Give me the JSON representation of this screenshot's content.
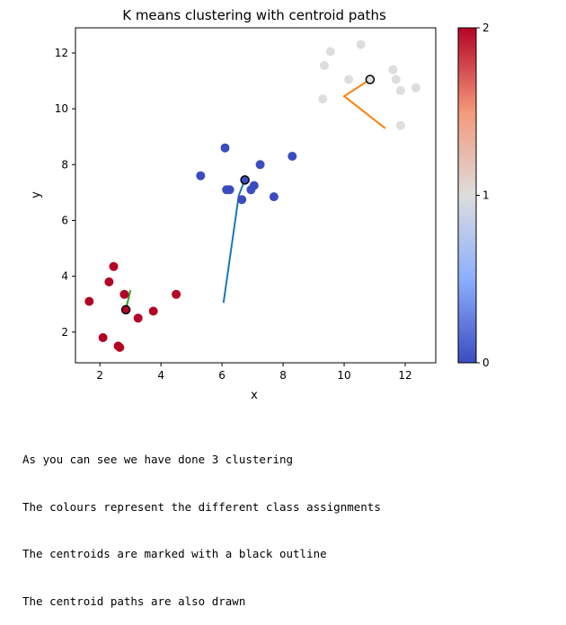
{
  "chart_data": {
    "type": "scatter",
    "title": "K means clustering with centroid paths",
    "xlabel": "x",
    "ylabel": "y",
    "xlim": [
      1.2,
      13.0
    ],
    "ylim": [
      0.9,
      12.9
    ],
    "xticks": [
      "2",
      "4",
      "6",
      "8",
      "10",
      "12"
    ],
    "yticks": [
      "2",
      "4",
      "6",
      "8",
      "10",
      "12"
    ],
    "grid": false,
    "colormap": "coolwarm",
    "colorbar": {
      "ticks": [
        "0",
        "1",
        "2"
      ],
      "range": [
        0,
        2
      ]
    },
    "class_colors": [
      "#3b4cc0",
      "#dddddd",
      "#b40426"
    ],
    "points": [
      {
        "x": 1.65,
        "y": 3.1,
        "cluster": 2
      },
      {
        "x": 2.1,
        "y": 1.8,
        "cluster": 2
      },
      {
        "x": 2.3,
        "y": 3.8,
        "cluster": 2
      },
      {
        "x": 2.45,
        "y": 4.35,
        "cluster": 2
      },
      {
        "x": 2.6,
        "y": 1.5,
        "cluster": 2
      },
      {
        "x": 2.65,
        "y": 1.45,
        "cluster": 2
      },
      {
        "x": 2.8,
        "y": 3.35,
        "cluster": 2
      },
      {
        "x": 3.25,
        "y": 2.5,
        "cluster": 2
      },
      {
        "x": 3.75,
        "y": 2.75,
        "cluster": 2
      },
      {
        "x": 4.5,
        "y": 3.35,
        "cluster": 2
      },
      {
        "x": 5.3,
        "y": 7.6,
        "cluster": 0
      },
      {
        "x": 6.1,
        "y": 8.6,
        "cluster": 0
      },
      {
        "x": 6.15,
        "y": 7.1,
        "cluster": 0
      },
      {
        "x": 6.25,
        "y": 7.1,
        "cluster": 0
      },
      {
        "x": 6.65,
        "y": 6.75,
        "cluster": 0
      },
      {
        "x": 6.95,
        "y": 7.1,
        "cluster": 0
      },
      {
        "x": 7.05,
        "y": 7.25,
        "cluster": 0
      },
      {
        "x": 7.25,
        "y": 8.0,
        "cluster": 0
      },
      {
        "x": 7.7,
        "y": 6.85,
        "cluster": 0
      },
      {
        "x": 8.3,
        "y": 8.3,
        "cluster": 0
      },
      {
        "x": 9.3,
        "y": 10.35,
        "cluster": 1
      },
      {
        "x": 9.35,
        "y": 11.55,
        "cluster": 1
      },
      {
        "x": 9.55,
        "y": 12.05,
        "cluster": 1
      },
      {
        "x": 10.15,
        "y": 11.05,
        "cluster": 1
      },
      {
        "x": 10.55,
        "y": 12.3,
        "cluster": 1
      },
      {
        "x": 11.6,
        "y": 11.4,
        "cluster": 1
      },
      {
        "x": 11.7,
        "y": 11.05,
        "cluster": 1
      },
      {
        "x": 11.85,
        "y": 10.65,
        "cluster": 1
      },
      {
        "x": 11.85,
        "y": 9.4,
        "cluster": 1
      },
      {
        "x": 12.35,
        "y": 10.75,
        "cluster": 1
      }
    ],
    "centroids": [
      {
        "x": 6.75,
        "y": 7.45,
        "cluster": 0
      },
      {
        "x": 10.85,
        "y": 11.05,
        "cluster": 1
      },
      {
        "x": 2.85,
        "y": 2.8,
        "cluster": 2
      }
    ],
    "paths": [
      {
        "color": "#1f77b4",
        "points": [
          [
            6.05,
            3.05
          ],
          [
            6.55,
            6.9
          ],
          [
            6.75,
            7.45
          ]
        ]
      },
      {
        "color": "#ff7f0e",
        "points": [
          [
            11.35,
            9.3
          ],
          [
            10.0,
            10.45
          ],
          [
            10.85,
            11.05
          ]
        ]
      },
      {
        "color": "#2ca02c",
        "points": [
          [
            3.0,
            3.5
          ],
          [
            2.85,
            2.8
          ]
        ]
      }
    ]
  },
  "caption": {
    "lines": [
      "As you can see we have done 3 clustering",
      "The colours represent the different class assignments",
      "The centroids are marked with a black outline",
      "The centroid paths are also drawn"
    ]
  }
}
